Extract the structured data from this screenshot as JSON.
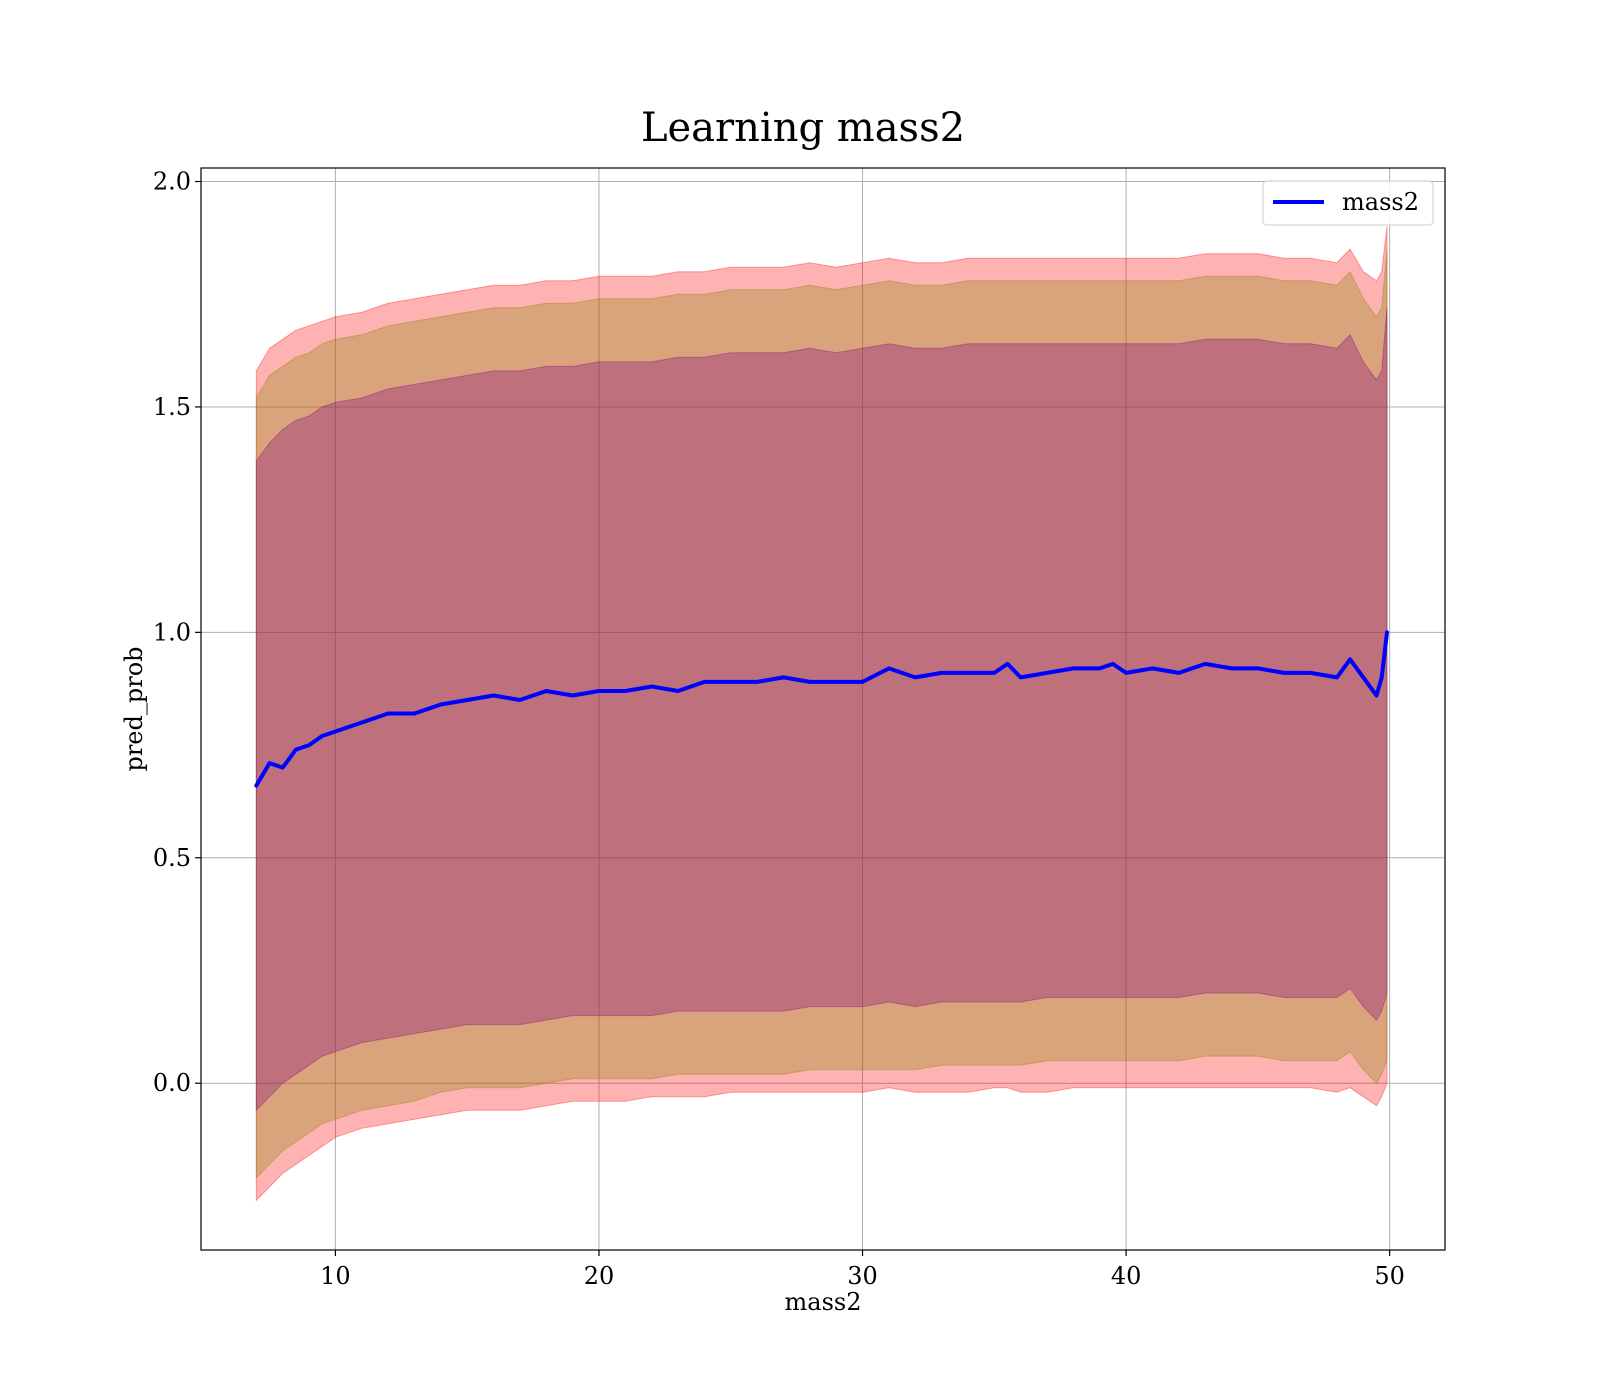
{
  "chart_data": {
    "type": "line",
    "title": "Learning mass2",
    "xlabel": "mass2",
    "ylabel": "pred_prob",
    "xlim": [
      4.9,
      52.1
    ],
    "ylim": [
      -0.37,
      2.03
    ],
    "xticks": [
      10,
      20,
      30,
      40,
      50
    ],
    "yticks": [
      0.0,
      0.5,
      1.0,
      1.5,
      2.0
    ],
    "xtick_labels": [
      "10",
      "20",
      "30",
      "40",
      "50"
    ],
    "ytick_labels": [
      "0.0",
      "0.5",
      "1.0",
      "1.5",
      "2.0"
    ],
    "grid": true,
    "legend": {
      "position": "upper right",
      "entries": [
        "mass2"
      ]
    },
    "series": [
      {
        "name": "mass2",
        "color": "#0000ff",
        "x": [
          7.0,
          7.5,
          8.0,
          8.5,
          9.0,
          9.5,
          10.0,
          11.0,
          12.0,
          13.0,
          14.0,
          15.0,
          16.0,
          17.0,
          18.0,
          19.0,
          20.0,
          21.0,
          22.0,
          23.0,
          24.0,
          25.0,
          26.0,
          27.0,
          28.0,
          29.0,
          30.0,
          31.0,
          32.0,
          33.0,
          34.0,
          35.0,
          35.5,
          36.0,
          37.0,
          38.0,
          39.0,
          39.5,
          40.0,
          41.0,
          42.0,
          43.0,
          44.0,
          45.0,
          46.0,
          47.0,
          48.0,
          48.5,
          49.0,
          49.5,
          49.7,
          49.9
        ],
        "values": [
          0.66,
          0.71,
          0.7,
          0.74,
          0.75,
          0.77,
          0.78,
          0.8,
          0.82,
          0.82,
          0.84,
          0.85,
          0.86,
          0.85,
          0.87,
          0.86,
          0.87,
          0.87,
          0.88,
          0.87,
          0.89,
          0.89,
          0.89,
          0.9,
          0.89,
          0.89,
          0.89,
          0.92,
          0.9,
          0.91,
          0.91,
          0.91,
          0.93,
          0.9,
          0.91,
          0.92,
          0.92,
          0.93,
          0.91,
          0.92,
          0.91,
          0.93,
          0.92,
          0.92,
          0.91,
          0.91,
          0.9,
          0.94,
          0.9,
          0.86,
          0.9,
          1.0
        ]
      }
    ],
    "bands": [
      {
        "color": "#ff0000",
        "opacity": 0.3,
        "lower": [
          -0.26,
          -0.23,
          -0.2,
          -0.18,
          -0.16,
          -0.14,
          -0.12,
          -0.1,
          -0.09,
          -0.08,
          -0.07,
          -0.06,
          -0.06,
          -0.06,
          -0.05,
          -0.04,
          -0.04,
          -0.04,
          -0.03,
          -0.03,
          -0.03,
          -0.02,
          -0.02,
          -0.02,
          -0.02,
          -0.02,
          -0.02,
          -0.01,
          -0.02,
          -0.02,
          -0.02,
          -0.01,
          -0.01,
          -0.02,
          -0.02,
          -0.01,
          -0.01,
          -0.01,
          -0.01,
          -0.01,
          -0.01,
          -0.01,
          -0.01,
          -0.01,
          -0.01,
          -0.01,
          -0.02,
          -0.01,
          -0.03,
          -0.05,
          -0.03,
          0.0
        ],
        "upper": [
          1.58,
          1.63,
          1.65,
          1.67,
          1.68,
          1.69,
          1.7,
          1.71,
          1.73,
          1.74,
          1.75,
          1.76,
          1.77,
          1.77,
          1.78,
          1.78,
          1.79,
          1.79,
          1.79,
          1.8,
          1.8,
          1.81,
          1.81,
          1.81,
          1.82,
          1.81,
          1.82,
          1.83,
          1.82,
          1.82,
          1.83,
          1.83,
          1.83,
          1.83,
          1.83,
          1.83,
          1.83,
          1.83,
          1.83,
          1.83,
          1.83,
          1.84,
          1.84,
          1.84,
          1.83,
          1.83,
          1.82,
          1.85,
          1.8,
          1.78,
          1.8,
          1.9
        ]
      },
      {
        "color": "#808000",
        "opacity": 0.3,
        "lower": [
          -0.21,
          -0.18,
          -0.15,
          -0.13,
          -0.11,
          -0.09,
          -0.08,
          -0.06,
          -0.05,
          -0.04,
          -0.02,
          -0.01,
          -0.01,
          -0.01,
          0.0,
          0.01,
          0.01,
          0.01,
          0.01,
          0.02,
          0.02,
          0.02,
          0.02,
          0.02,
          0.03,
          0.03,
          0.03,
          0.03,
          0.03,
          0.04,
          0.04,
          0.04,
          0.04,
          0.04,
          0.05,
          0.05,
          0.05,
          0.05,
          0.05,
          0.05,
          0.05,
          0.06,
          0.06,
          0.06,
          0.05,
          0.05,
          0.05,
          0.07,
          0.03,
          0.0,
          0.02,
          0.05
        ],
        "upper": [
          1.52,
          1.57,
          1.59,
          1.61,
          1.62,
          1.64,
          1.65,
          1.66,
          1.68,
          1.69,
          1.7,
          1.71,
          1.72,
          1.72,
          1.73,
          1.73,
          1.74,
          1.74,
          1.74,
          1.75,
          1.75,
          1.76,
          1.76,
          1.76,
          1.77,
          1.76,
          1.77,
          1.78,
          1.77,
          1.77,
          1.78,
          1.78,
          1.78,
          1.78,
          1.78,
          1.78,
          1.78,
          1.78,
          1.78,
          1.78,
          1.78,
          1.79,
          1.79,
          1.79,
          1.78,
          1.78,
          1.77,
          1.8,
          1.74,
          1.7,
          1.72,
          1.85
        ]
      },
      {
        "color": "#800080",
        "opacity": 0.3,
        "lower": [
          -0.06,
          -0.03,
          0.0,
          0.02,
          0.04,
          0.06,
          0.07,
          0.09,
          0.1,
          0.11,
          0.12,
          0.13,
          0.13,
          0.13,
          0.14,
          0.15,
          0.15,
          0.15,
          0.15,
          0.16,
          0.16,
          0.16,
          0.16,
          0.16,
          0.17,
          0.17,
          0.17,
          0.18,
          0.17,
          0.18,
          0.18,
          0.18,
          0.18,
          0.18,
          0.19,
          0.19,
          0.19,
          0.19,
          0.19,
          0.19,
          0.19,
          0.2,
          0.2,
          0.2,
          0.19,
          0.19,
          0.19,
          0.21,
          0.17,
          0.14,
          0.16,
          0.2
        ],
        "upper": [
          1.38,
          1.42,
          1.45,
          1.47,
          1.48,
          1.5,
          1.51,
          1.52,
          1.54,
          1.55,
          1.56,
          1.57,
          1.58,
          1.58,
          1.59,
          1.59,
          1.6,
          1.6,
          1.6,
          1.61,
          1.61,
          1.62,
          1.62,
          1.62,
          1.63,
          1.62,
          1.63,
          1.64,
          1.63,
          1.63,
          1.64,
          1.64,
          1.64,
          1.64,
          1.64,
          1.64,
          1.64,
          1.64,
          1.64,
          1.64,
          1.64,
          1.65,
          1.65,
          1.65,
          1.64,
          1.64,
          1.63,
          1.66,
          1.6,
          1.56,
          1.58,
          1.72
        ]
      }
    ]
  }
}
